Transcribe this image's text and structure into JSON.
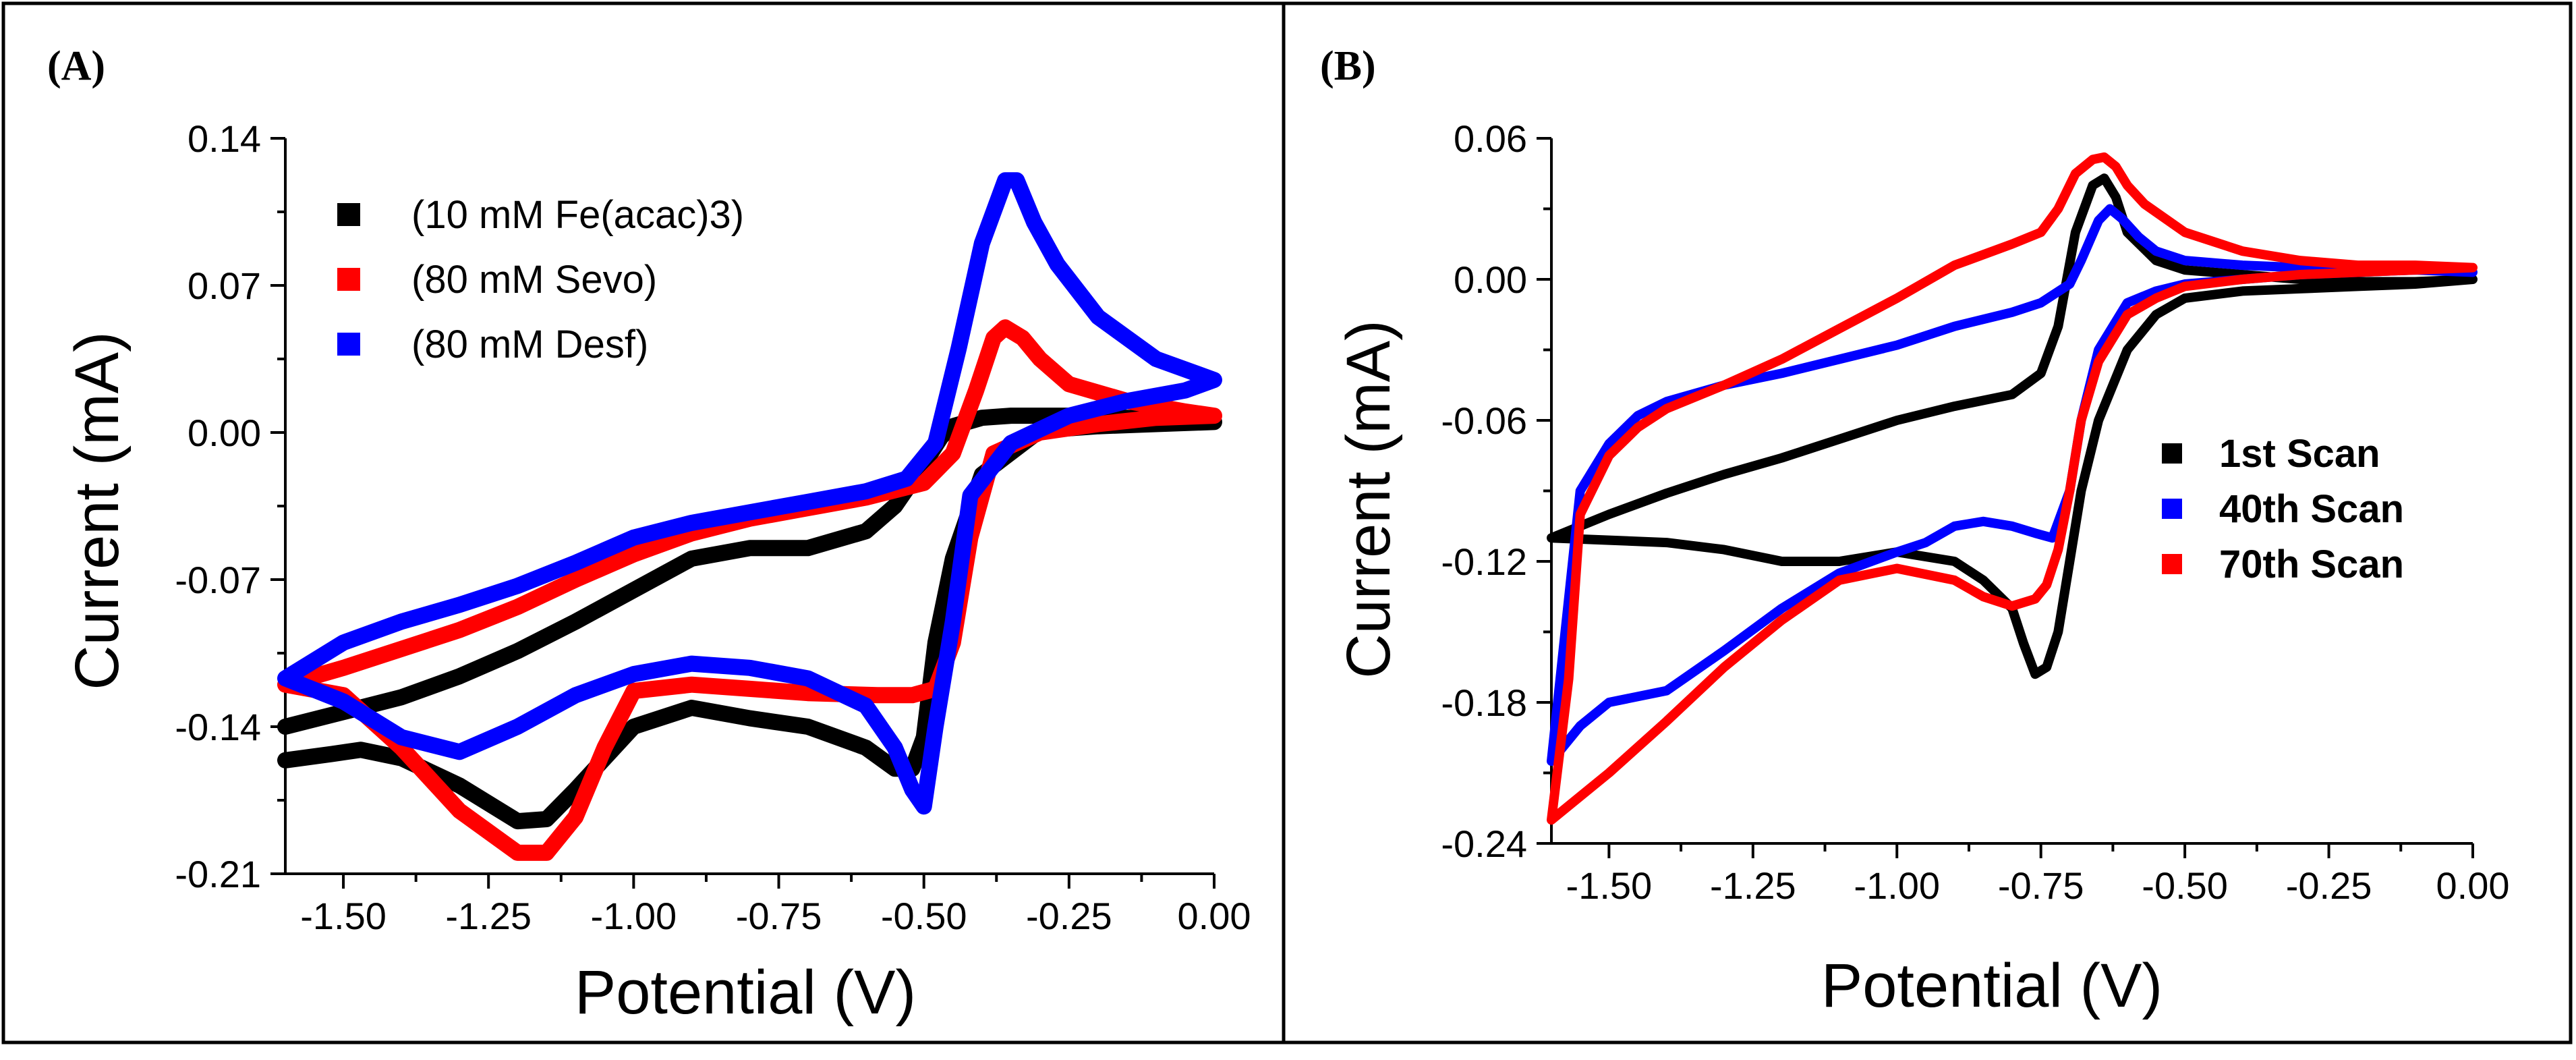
{
  "chart_data": [
    {
      "panel_label": "(A)",
      "type": "line",
      "xlabel": "Potential (V)",
      "ylabel": "Current (mA)",
      "xlim": [
        -1.6,
        0.0
      ],
      "ylim": [
        -0.21,
        0.14
      ],
      "x_ticks": [
        -1.5,
        -1.25,
        -1.0,
        -0.75,
        -0.5,
        -0.25,
        0.0
      ],
      "x_tick_labels": [
        "-1.50",
        "-1.25",
        "-1.00",
        "-0.75",
        "-0.50",
        "-0.25",
        "0.00"
      ],
      "y_ticks": [
        0.14,
        0.07,
        0.0,
        -0.07,
        -0.14,
        -0.21
      ],
      "y_tick_labels": [
        "0.14",
        "0.07",
        "0.00",
        "-0.07",
        "-0.14",
        "-0.21"
      ],
      "legend_position": "top-left",
      "series": [
        {
          "name": "(10 mM Fe(acac)3)",
          "color": "#000000",
          "x": [
            -1.6,
            -1.5,
            -1.4,
            -1.3,
            -1.2,
            -1.1,
            -1.0,
            -0.9,
            -0.8,
            -0.7,
            -0.6,
            -0.55,
            -0.5,
            -0.47,
            -0.45,
            -0.4,
            -0.35,
            -0.25,
            -0.15,
            -0.05,
            0.0,
            -0.1,
            -0.2,
            -0.3,
            -0.4,
            -0.45,
            -0.48,
            -0.5,
            -0.52,
            -0.55,
            -0.6,
            -0.7,
            -0.8,
            -0.9,
            -1.0,
            -1.1,
            -1.15,
            -1.2,
            -1.3,
            -1.4,
            -1.47,
            -1.52,
            -1.6
          ],
          "y": [
            -0.14,
            -0.133,
            -0.126,
            -0.116,
            -0.104,
            -0.09,
            -0.075,
            -0.06,
            -0.055,
            -0.055,
            -0.047,
            -0.035,
            -0.015,
            -0.002,
            0.003,
            0.007,
            0.008,
            0.008,
            0.007,
            0.006,
            0.005,
            0.004,
            0.003,
            0.001,
            -0.02,
            -0.06,
            -0.1,
            -0.145,
            -0.16,
            -0.16,
            -0.15,
            -0.14,
            -0.136,
            -0.131,
            -0.14,
            -0.17,
            -0.184,
            -0.185,
            -0.168,
            -0.155,
            -0.151,
            -0.153,
            -0.156
          ]
        },
        {
          "name": "(80 mM Sevo)",
          "color": "#ff0000",
          "x": [
            -1.6,
            -1.5,
            -1.4,
            -1.3,
            -1.2,
            -1.1,
            -1.0,
            -0.9,
            -0.8,
            -0.7,
            -0.6,
            -0.5,
            -0.45,
            -0.41,
            -0.38,
            -0.36,
            -0.33,
            -0.3,
            -0.25,
            -0.15,
            -0.05,
            0.0,
            -0.1,
            -0.2,
            -0.3,
            -0.38,
            -0.42,
            -0.45,
            -0.48,
            -0.52,
            -0.58,
            -0.7,
            -0.8,
            -0.9,
            -1.0,
            -1.05,
            -1.1,
            -1.15,
            -1.2,
            -1.3,
            -1.4,
            -1.5,
            -1.6
          ],
          "y": [
            -0.12,
            -0.112,
            -0.103,
            -0.094,
            -0.083,
            -0.07,
            -0.058,
            -0.048,
            -0.041,
            -0.036,
            -0.031,
            -0.024,
            -0.01,
            0.02,
            0.045,
            0.05,
            0.045,
            0.035,
            0.023,
            0.015,
            0.01,
            0.008,
            0.007,
            0.004,
            0.0,
            -0.01,
            -0.05,
            -0.1,
            -0.122,
            -0.125,
            -0.125,
            -0.124,
            -0.122,
            -0.12,
            -0.123,
            -0.15,
            -0.183,
            -0.2,
            -0.2,
            -0.18,
            -0.15,
            -0.125,
            -0.12
          ]
        },
        {
          "name": "(80 mM Desf)",
          "color": "#0000ff",
          "x": [
            -1.6,
            -1.5,
            -1.4,
            -1.3,
            -1.2,
            -1.1,
            -1.0,
            -0.9,
            -0.8,
            -0.7,
            -0.6,
            -0.53,
            -0.48,
            -0.44,
            -0.4,
            -0.36,
            -0.34,
            -0.31,
            -0.27,
            -0.2,
            -0.1,
            0.0,
            -0.05,
            -0.15,
            -0.25,
            -0.35,
            -0.42,
            -0.45,
            -0.48,
            -0.5,
            -0.52,
            -0.55,
            -0.6,
            -0.7,
            -0.8,
            -0.9,
            -1.0,
            -1.1,
            -1.2,
            -1.3,
            -1.4,
            -1.5,
            -1.6
          ],
          "y": [
            -0.117,
            -0.1,
            -0.09,
            -0.082,
            -0.073,
            -0.062,
            -0.05,
            -0.043,
            -0.038,
            -0.033,
            -0.028,
            -0.022,
            -0.005,
            0.04,
            0.09,
            0.12,
            0.12,
            0.1,
            0.08,
            0.055,
            0.035,
            0.025,
            0.02,
            0.015,
            0.008,
            -0.005,
            -0.03,
            -0.09,
            -0.14,
            -0.178,
            -0.17,
            -0.15,
            -0.13,
            -0.117,
            -0.112,
            -0.11,
            -0.115,
            -0.125,
            -0.14,
            -0.152,
            -0.145,
            -0.128,
            -0.117
          ]
        }
      ]
    },
    {
      "panel_label": "(B)",
      "type": "line",
      "xlabel": "Potential (V)",
      "ylabel": "Current (mA)",
      "xlim": [
        -1.6,
        0.0
      ],
      "ylim": [
        -0.24,
        0.06
      ],
      "x_ticks": [
        -1.5,
        -1.25,
        -1.0,
        -0.75,
        -0.5,
        -0.25,
        0.0
      ],
      "x_tick_labels": [
        "-1.50",
        "-1.25",
        "-1.00",
        "-0.75",
        "-0.50",
        "-0.25",
        "0.00"
      ],
      "y_ticks": [
        0.06,
        0.0,
        -0.06,
        -0.12,
        -0.18,
        -0.24
      ],
      "y_tick_labels": [
        "0.06",
        "0.00",
        "-0.06",
        "-0.12",
        "-0.18",
        "-0.24"
      ],
      "legend_position": "right",
      "series": [
        {
          "name": "1st Scan",
          "color": "#000000",
          "x": [
            -1.6,
            -1.5,
            -1.4,
            -1.3,
            -1.2,
            -1.1,
            -1.0,
            -0.9,
            -0.8,
            -0.75,
            -0.72,
            -0.69,
            -0.66,
            -0.64,
            -0.62,
            -0.6,
            -0.55,
            -0.5,
            -0.4,
            -0.3,
            -0.2,
            -0.1,
            0.0,
            -0.1,
            -0.2,
            -0.3,
            -0.4,
            -0.5,
            -0.55,
            -0.6,
            -0.65,
            -0.68,
            -0.7,
            -0.72,
            -0.74,
            -0.76,
            -0.78,
            -0.8,
            -0.85,
            -0.9,
            -1.0,
            -1.1,
            -1.2,
            -1.3,
            -1.4,
            -1.5,
            -1.6
          ],
          "y": [
            -0.11,
            -0.1,
            -0.091,
            -0.083,
            -0.076,
            -0.068,
            -0.06,
            -0.054,
            -0.049,
            -0.04,
            -0.02,
            0.02,
            0.04,
            0.043,
            0.035,
            0.02,
            0.008,
            0.004,
            0.002,
            0.0,
            -0.001,
            -0.001,
            0.0,
            -0.002,
            -0.003,
            -0.004,
            -0.005,
            -0.008,
            -0.015,
            -0.03,
            -0.06,
            -0.09,
            -0.12,
            -0.15,
            -0.165,
            -0.168,
            -0.155,
            -0.14,
            -0.128,
            -0.12,
            -0.116,
            -0.12,
            -0.12,
            -0.115,
            -0.112,
            -0.111,
            -0.11
          ]
        },
        {
          "name": "40th Scan",
          "color": "#0000ff",
          "x": [
            -1.6,
            -1.55,
            -1.5,
            -1.45,
            -1.4,
            -1.3,
            -1.2,
            -1.1,
            -1.0,
            -0.9,
            -0.8,
            -0.75,
            -0.7,
            -0.68,
            -0.65,
            -0.63,
            -0.61,
            -0.58,
            -0.55,
            -0.5,
            -0.4,
            -0.3,
            -0.2,
            -0.1,
            0.0,
            -0.1,
            -0.2,
            -0.3,
            -0.4,
            -0.5,
            -0.55,
            -0.6,
            -0.65,
            -0.68,
            -0.7,
            -0.73,
            -0.76,
            -0.8,
            -0.85,
            -0.9,
            -0.95,
            -1.0,
            -1.1,
            -1.2,
            -1.3,
            -1.4,
            -1.5,
            -1.55,
            -1.6
          ],
          "y": [
            -0.205,
            -0.09,
            -0.07,
            -0.058,
            -0.052,
            -0.045,
            -0.04,
            -0.034,
            -0.028,
            -0.02,
            -0.014,
            -0.01,
            -0.002,
            0.008,
            0.025,
            0.03,
            0.026,
            0.018,
            0.012,
            0.008,
            0.006,
            0.005,
            0.004,
            0.004,
            0.003,
            0.004,
            0.003,
            0.002,
            0.0,
            -0.002,
            -0.005,
            -0.01,
            -0.03,
            -0.06,
            -0.09,
            -0.11,
            -0.108,
            -0.105,
            -0.103,
            -0.105,
            -0.112,
            -0.116,
            -0.125,
            -0.14,
            -0.158,
            -0.175,
            -0.18,
            -0.19,
            -0.205
          ]
        },
        {
          "name": "70th Scan",
          "color": "#ff0000",
          "x": [
            -1.6,
            -1.57,
            -1.55,
            -1.5,
            -1.45,
            -1.4,
            -1.3,
            -1.2,
            -1.1,
            -1.0,
            -0.9,
            -0.8,
            -0.75,
            -0.72,
            -0.69,
            -0.66,
            -0.64,
            -0.62,
            -0.6,
            -0.57,
            -0.5,
            -0.4,
            -0.3,
            -0.2,
            -0.1,
            0.0,
            -0.1,
            -0.2,
            -0.3,
            -0.4,
            -0.5,
            -0.55,
            -0.6,
            -0.65,
            -0.68,
            -0.7,
            -0.72,
            -0.74,
            -0.76,
            -0.8,
            -0.85,
            -0.9,
            -1.0,
            -1.1,
            -1.2,
            -1.3,
            -1.4,
            -1.5,
            -1.55,
            -1.6
          ],
          "y": [
            -0.23,
            -0.17,
            -0.1,
            -0.075,
            -0.063,
            -0.055,
            -0.045,
            -0.034,
            -0.021,
            -0.008,
            0.006,
            0.015,
            0.02,
            0.03,
            0.045,
            0.051,
            0.052,
            0.048,
            0.04,
            0.032,
            0.02,
            0.012,
            0.008,
            0.006,
            0.006,
            0.005,
            0.004,
            0.003,
            0.002,
            0.0,
            -0.003,
            -0.008,
            -0.015,
            -0.035,
            -0.06,
            -0.09,
            -0.115,
            -0.13,
            -0.136,
            -0.139,
            -0.135,
            -0.128,
            -0.123,
            -0.128,
            -0.145,
            -0.165,
            -0.188,
            -0.21,
            -0.22,
            -0.23
          ]
        }
      ]
    }
  ]
}
